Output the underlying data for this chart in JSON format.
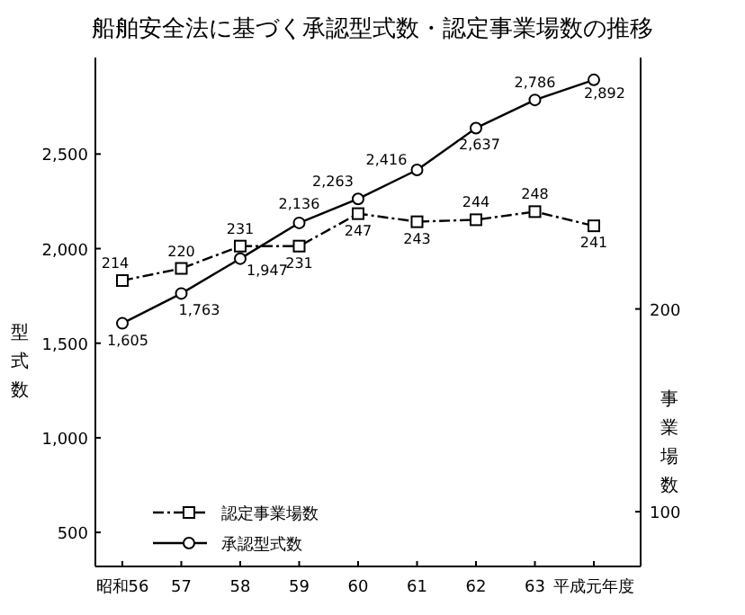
{
  "chart_data": {
    "type": "line",
    "title": "船舶安全法に基づく承認型式数・認定事業場数の推移",
    "ylabel": "型式数",
    "y2label": "事業場数",
    "categories": [
      "昭和56",
      "57",
      "58",
      "59",
      "60",
      "61",
      "62",
      "63",
      "平成元年度"
    ],
    "series": [
      {
        "name": "認定事業場数",
        "color": "#000000",
        "axis": "y2",
        "marker": "square",
        "line_style": "dashed",
        "values": [
          214,
          220,
          231,
          231,
          247,
          243,
          244,
          248,
          241
        ],
        "value_labels": [
          "214",
          "220",
          "231",
          "231",
          "247",
          "243",
          "244",
          "248",
          "241"
        ]
      },
      {
        "name": "承認型式数",
        "color": "#000000",
        "marker": "circle",
        "line_style": "solid",
        "values": [
          1605,
          1763,
          1947,
          2136,
          2263,
          2416,
          2637,
          2786,
          2892
        ],
        "value_labels": [
          "1,605",
          "1,763",
          "1,947",
          "2,136",
          "2,263",
          "2,416",
          "2,637",
          "2,786",
          "2,892"
        ]
      }
    ],
    "ylim": [
      320,
      3010
    ],
    "yticks": [
      {
        "value": 500,
        "label": "500"
      },
      {
        "value": 1000,
        "label": "1,000"
      },
      {
        "value": 1500,
        "label": "1,500"
      },
      {
        "value": 2000,
        "label": "2,000"
      },
      {
        "value": 2500,
        "label": "2,500"
      }
    ],
    "y2lim": [
      73,
      324
    ],
    "y2ticks": [
      100,
      200
    ],
    "legend": "bottom left",
    "grid": false
  }
}
